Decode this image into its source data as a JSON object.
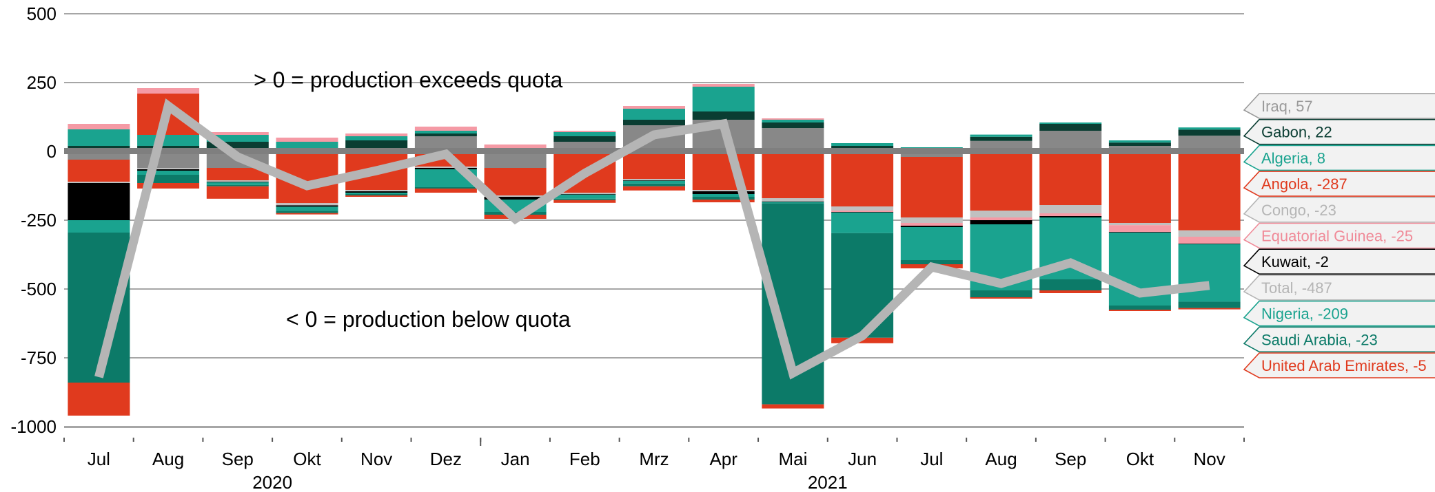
{
  "chart_data": {
    "type": "bar",
    "stacked": true,
    "categories": [
      "Jul",
      "Aug",
      "Sep",
      "Okt",
      "Nov",
      "Dez",
      "Jan",
      "Feb",
      "Mrz",
      "Apr",
      "Mai",
      "Jun",
      "Jul",
      "Aug",
      "Sep",
      "Okt",
      "Nov"
    ],
    "year_labels": [
      {
        "label": "2020",
        "index": 3
      },
      {
        "label": "2021",
        "index": 11
      }
    ],
    "ylim": [
      -1000,
      500
    ],
    "yticks": [
      500,
      250,
      0,
      -250,
      -500,
      -750,
      -1000
    ],
    "ytick_labels": [
      "500",
      "250",
      "0",
      "-250",
      "-500",
      "-750",
      "-1000"
    ],
    "grid": true,
    "annotations": {
      "above": "> 0 = production exceeds quota",
      "below": "< 0 = production below quota"
    },
    "series": [
      {
        "name": "Iraq",
        "label": "Iraq, 57",
        "color": "#888888",
        "label_color": "#9a9a9a",
        "values": [
          -30,
          -60,
          -60,
          -8,
          0,
          55,
          -60,
          35,
          95,
          115,
          85,
          0,
          -20,
          38,
          75,
          20,
          57
        ]
      },
      {
        "name": "Gabon",
        "label": "Gabon, 22",
        "color": "#0a3d32",
        "label_color": "#0a3d32",
        "values": [
          20,
          20,
          35,
          5,
          40,
          10,
          5,
          20,
          20,
          30,
          20,
          20,
          10,
          15,
          25,
          12,
          22
        ]
      },
      {
        "name": "Algeria",
        "label": "Algeria, 8",
        "color": "#1aa38f",
        "label_color": "#1aa38f",
        "values": [
          60,
          40,
          25,
          30,
          15,
          10,
          5,
          15,
          40,
          90,
          10,
          10,
          5,
          8,
          5,
          8,
          8
        ]
      },
      {
        "name": "Angola",
        "label": "Angola, -287",
        "color": "#e03a1e",
        "label_color": "#e03a1e",
        "values": [
          -80,
          150,
          -45,
          -180,
          -140,
          -55,
          -100,
          -150,
          -100,
          -140,
          -170,
          -200,
          -220,
          -215,
          -195,
          -260,
          -287
        ]
      },
      {
        "name": "Congo",
        "label": "Congo, -23",
        "color": "#c0c0c0",
        "label_color": "#b5b5b5",
        "values": [
          -5,
          -5,
          -5,
          -8,
          -5,
          -5,
          -5,
          -5,
          -5,
          -5,
          -12,
          -15,
          -20,
          -25,
          -30,
          -8,
          -23
        ]
      },
      {
        "name": "Equatorial Guinea",
        "label": "Equatorial Guinea, -25",
        "color": "#f59aa5",
        "label_color": "#f08a98",
        "values": [
          20,
          20,
          10,
          15,
          10,
          15,
          15,
          5,
          10,
          10,
          5,
          -5,
          -10,
          -10,
          -10,
          -25,
          -25
        ]
      },
      {
        "name": "Kuwait",
        "label": "Kuwait, -2",
        "color": "#000000",
        "label_color": "#000000",
        "values": [
          -135,
          -5,
          -2,
          -5,
          -5,
          -5,
          -10,
          -2,
          -2,
          -10,
          -2,
          -2,
          -5,
          -15,
          -5,
          -2,
          -2
        ]
      },
      {
        "name": "Total",
        "label": "Total, -487",
        "color": "#b5b5b5",
        "label_color": "#b5b5b5",
        "values": [
          -820,
          165,
          -20,
          -125,
          -70,
          -10,
          -245,
          -80,
          60,
          100,
          -805,
          -670,
          -420,
          -480,
          -405,
          -515,
          -487
        ]
      },
      {
        "name": "Nigeria",
        "label": "Nigeria, -209",
        "color": "#1aa38f",
        "label_color": "#1aa38f",
        "values": [
          -45,
          -15,
          -10,
          -15,
          -5,
          -65,
          -45,
          -15,
          -10,
          -10,
          -5,
          -75,
          -120,
          -240,
          -225,
          -265,
          -209
        ]
      },
      {
        "name": "Saudi Arabia",
        "label": "Saudi Arabia, -23",
        "color": "#0c7a68",
        "label_color": "#0c7a68",
        "values": [
          -545,
          -30,
          -5,
          -8,
          -5,
          -5,
          -10,
          -5,
          -10,
          -10,
          -730,
          -380,
          -15,
          -25,
          -40,
          -15,
          -23
        ]
      },
      {
        "name": "United Arab Emirates",
        "label": "United Arab Emirates, -5",
        "color": "#e03a1e",
        "label_color": "#e03a1e",
        "values": [
          -120,
          -20,
          -45,
          -5,
          -5,
          -15,
          -15,
          -10,
          -15,
          -10,
          -15,
          -20,
          -15,
          -5,
          -10,
          -5,
          -5
        ]
      }
    ]
  }
}
